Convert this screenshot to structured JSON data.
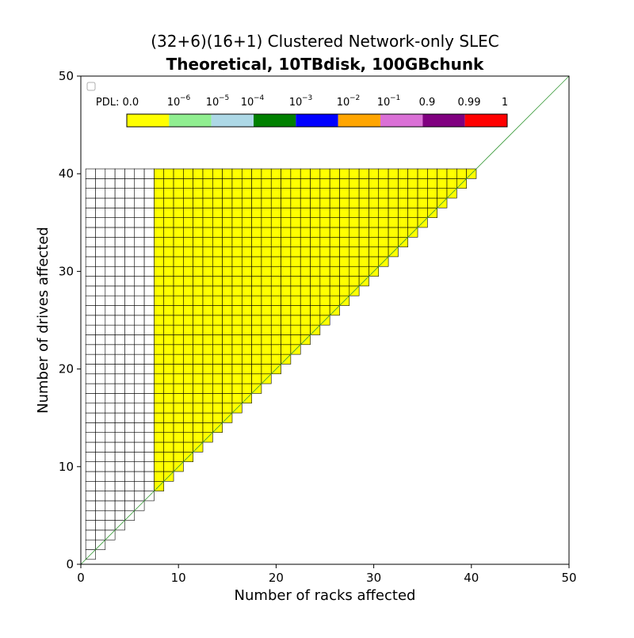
{
  "chart_data": {
    "type": "heatmap",
    "title": "(32+6)(16+1) Clustered Network-only SLEC",
    "subtitle": "Theoretical, 10TBdisk, 100GBchunk",
    "xlabel": "Number of racks affected",
    "ylabel": "Number of drives affected",
    "xlim": [
      0,
      50
    ],
    "ylim": [
      0,
      50
    ],
    "xticks": [
      "0",
      "10",
      "20",
      "30",
      "40",
      "50"
    ],
    "yticks": [
      "0",
      "10",
      "20",
      "30",
      "40",
      "50"
    ],
    "x_range": [
      1,
      40
    ],
    "y_range": [
      1,
      40
    ],
    "cell_rule": "cells exist where drives >= racks; cells with racks <= 7 are white (no data), cells with racks >= 8 have PDL 0.0",
    "white_max_racks": 7,
    "cell_value": 0.0,
    "diagonal_line": {
      "from": [
        0,
        0
      ],
      "to": [
        50,
        50
      ],
      "color": "#3a9a3a"
    },
    "grid": false,
    "legend_placement": "top-left",
    "colorbar": {
      "label": "PDL: 0.0",
      "bins": [
        {
          "label": "PDL: 0.0",
          "base": "",
          "exp": "",
          "color": "#ffff00"
        },
        {
          "label": "",
          "base": "10",
          "exp": "−6",
          "color": "#90ee90"
        },
        {
          "label": "",
          "base": "10",
          "exp": "−5",
          "color": "#add8e6"
        },
        {
          "label": "",
          "base": "10",
          "exp": "−4",
          "color": "#008000"
        },
        {
          "label": "",
          "base": "10",
          "exp": "−3",
          "color": "#0000ff"
        },
        {
          "label": "",
          "base": "10",
          "exp": "−2",
          "color": "#ffa500"
        },
        {
          "label": "",
          "base": "10",
          "exp": "−1",
          "color": "#da70d6"
        },
        {
          "label": "0.9",
          "base": "",
          "exp": "",
          "color": "#800080"
        },
        {
          "label": "0.99",
          "base": "",
          "exp": "",
          "color": "#ff0000"
        },
        {
          "label": "1",
          "base": "",
          "exp": "",
          "color": ""
        }
      ]
    }
  }
}
